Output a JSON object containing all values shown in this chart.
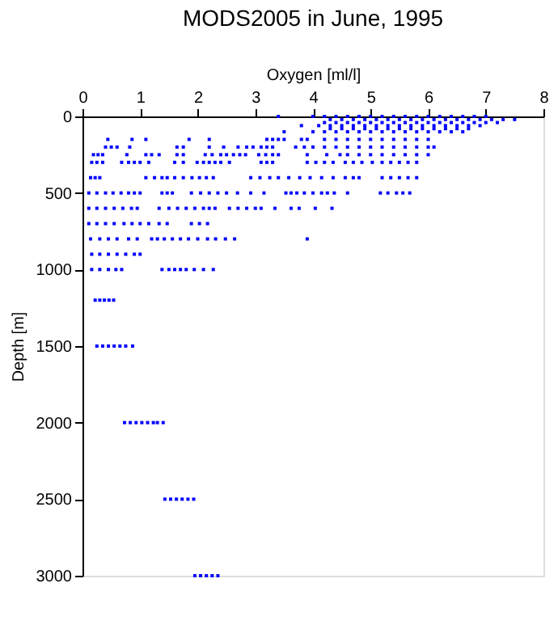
{
  "chart_data": {
    "type": "scatter",
    "title": "MODS2005 in June, 1995",
    "xlabel": "Oxygen [ml/l]",
    "ylabel": "Depth [m]",
    "xlim": [
      0,
      8
    ],
    "xticks": [
      0,
      1,
      2,
      3,
      4,
      5,
      6,
      7,
      8
    ],
    "ylim": [
      3000,
      0
    ],
    "yticks": [
      0,
      500,
      1000,
      1500,
      2000,
      2500,
      3000
    ],
    "grid": false,
    "legend": false,
    "marker": "square",
    "series": [
      {
        "color": "#0000ff",
        "x": [
          3.4,
          4.0,
          4.2,
          4.4,
          4.6,
          4.8,
          5.0,
          5.2,
          5.4,
          5.6,
          5.8,
          6.0,
          6.2,
          6.4,
          6.6,
          6.8,
          7.0
        ],
        "values": [
          0,
          0,
          0,
          0,
          0,
          0,
          0,
          0,
          0,
          0,
          0,
          0,
          0,
          0,
          0,
          0,
          0
        ]
      },
      {
        "color": "#0000ff",
        "x": [
          4.3,
          4.5,
          4.7,
          4.9,
          5.1,
          5.3,
          5.5,
          5.7,
          5.9,
          6.1,
          6.3,
          6.5,
          6.7,
          6.9,
          7.1,
          7.3,
          7.5
        ],
        "values": [
          20,
          20,
          20,
          20,
          20,
          20,
          20,
          20,
          20,
          20,
          20,
          20,
          20,
          20,
          20,
          20,
          20
        ]
      },
      {
        "color": "#0000ff",
        "x": [
          4.2,
          4.4,
          4.6,
          4.8,
          5.0,
          5.2,
          5.4,
          5.6,
          5.8,
          6.0,
          6.2,
          6.4,
          6.6,
          6.8,
          7.0,
          7.2
        ],
        "values": [
          40,
          40,
          40,
          40,
          40,
          40,
          40,
          40,
          40,
          40,
          40,
          40,
          40,
          40,
          40,
          40
        ]
      },
      {
        "color": "#0000ff",
        "x": [
          3.8,
          4.1,
          4.3,
          4.5,
          4.7,
          4.9,
          5.1,
          5.3,
          5.5,
          5.7,
          5.9,
          6.1,
          6.3,
          6.5,
          6.7,
          6.9
        ],
        "values": [
          60,
          60,
          60,
          60,
          60,
          60,
          60,
          60,
          60,
          60,
          60,
          60,
          60,
          60,
          60,
          60
        ]
      },
      {
        "color": "#0000ff",
        "x": [
          4.3,
          4.5,
          4.7,
          4.9,
          5.1,
          5.3,
          5.5,
          5.7,
          5.9,
          6.1,
          6.3,
          6.5,
          6.7
        ],
        "values": [
          80,
          80,
          80,
          80,
          80,
          80,
          80,
          80,
          80,
          80,
          80,
          80,
          80
        ]
      },
      {
        "color": "#0000ff",
        "x": [
          3.5,
          4.0,
          4.2,
          4.4,
          4.6,
          4.8,
          5.0,
          5.2,
          5.4,
          5.6,
          5.8,
          6.0,
          6.2,
          6.4,
          6.6
        ],
        "values": [
          100,
          100,
          100,
          100,
          100,
          100,
          100,
          100,
          100,
          100,
          100,
          100,
          100,
          100,
          100
        ]
      },
      {
        "color": "#0000ff",
        "x": [
          0.44,
          0.86,
          1.1,
          1.85,
          2.2,
          3.2,
          3.3,
          3.4,
          3.5,
          3.8,
          3.9,
          4.2,
          4.4,
          4.6,
          4.8,
          5.0,
          5.2,
          5.4,
          5.6,
          5.8,
          6.0
        ],
        "values": [
          150,
          150,
          150,
          150,
          150,
          150,
          150,
          150,
          150,
          150,
          150,
          150,
          150,
          150,
          150,
          150,
          150,
          150,
          150,
          150,
          150
        ]
      },
      {
        "color": "#0000ff",
        "x": [
          0.4,
          0.5,
          0.6,
          0.82,
          1.64,
          1.75,
          2.2,
          2.45,
          2.7,
          2.85,
          2.96,
          3.1,
          3.2,
          3.3,
          3.7,
          3.85,
          4.0,
          4.2,
          4.4,
          4.6,
          4.8,
          5.0,
          5.2,
          5.4,
          5.6,
          5.8,
          6.0,
          6.1
        ],
        "values": [
          200,
          200,
          200,
          200,
          200,
          200,
          200,
          200,
          200,
          200,
          200,
          200,
          200,
          200,
          200,
          200,
          200,
          200,
          200,
          200,
          200,
          200,
          200,
          200,
          200,
          200,
          200,
          200
        ]
      },
      {
        "color": "#0000ff",
        "x": [
          0.19,
          0.27,
          0.35,
          0.77,
          1.1,
          1.2,
          1.33,
          1.64,
          1.75,
          2.13,
          2.25,
          2.4,
          2.5,
          2.62,
          2.73,
          2.83,
          3.06,
          3.18,
          3.3,
          3.4,
          3.9,
          4.24,
          4.47,
          4.6,
          4.8,
          5.0,
          5.2,
          5.4,
          5.6,
          5.8,
          6.0
        ],
        "values": [
          250,
          250,
          250,
          250,
          250,
          250,
          250,
          250,
          250,
          250,
          250,
          250,
          250,
          250,
          250,
          250,
          250,
          250,
          250,
          250,
          250,
          250,
          250,
          250,
          250,
          250,
          250,
          250,
          250,
          250,
          250
        ]
      },
      {
        "color": "#0000ff",
        "x": [
          0.16,
          0.25,
          0.35,
          0.68,
          0.8,
          0.9,
          1.0,
          1.15,
          1.6,
          1.75,
          1.99,
          2.1,
          2.2,
          2.3,
          2.4,
          2.55,
          3.1,
          3.2,
          3.3,
          3.9,
          4.05,
          4.2,
          4.35,
          4.56,
          4.7,
          4.85,
          5.03,
          5.2,
          5.35,
          5.5,
          5.65,
          5.8
        ],
        "values": [
          300,
          300,
          300,
          300,
          300,
          300,
          300,
          300,
          300,
          300,
          300,
          300,
          300,
          300,
          300,
          300,
          300,
          300,
          300,
          300,
          300,
          300,
          300,
          300,
          300,
          300,
          300,
          300,
          300,
          300,
          300,
          300
        ]
      },
      {
        "color": "#0000ff",
        "x": [
          0.14,
          0.22,
          0.3,
          1.1,
          1.25,
          1.38,
          1.47,
          1.6,
          1.75,
          1.9,
          2.03,
          2.15,
          2.27,
          2.92,
          3.08,
          3.25,
          3.4,
          3.58,
          3.77,
          3.95,
          4.15,
          4.35,
          4.56,
          4.7,
          4.8,
          5.2,
          5.35,
          5.5,
          5.65,
          5.8
        ],
        "values": [
          400,
          400,
          400,
          400,
          400,
          400,
          400,
          400,
          400,
          400,
          400,
          400,
          400,
          400,
          400,
          400,
          400,
          400,
          400,
          400,
          400,
          400,
          400,
          400,
          400,
          400,
          400,
          400,
          400,
          400
        ]
      },
      {
        "color": "#0000ff",
        "x": [
          0.11,
          0.25,
          0.4,
          0.53,
          0.67,
          0.8,
          0.9,
          1.0,
          1.38,
          1.47,
          1.56,
          1.89,
          2.05,
          2.2,
          2.35,
          2.5,
          2.69,
          2.92,
          3.15,
          3.53,
          3.62,
          3.72,
          3.85,
          4.0,
          4.15,
          4.25,
          4.37,
          4.6,
          5.17,
          5.3,
          5.45,
          5.56,
          5.68
        ],
        "values": [
          500,
          500,
          500,
          500,
          500,
          500,
          500,
          500,
          500,
          500,
          500,
          500,
          500,
          500,
          500,
          500,
          500,
          500,
          500,
          500,
          500,
          500,
          500,
          500,
          500,
          500,
          500,
          500,
          500,
          500,
          500,
          500,
          500
        ]
      },
      {
        "color": "#0000ff",
        "x": [
          0.11,
          0.25,
          0.4,
          0.55,
          0.7,
          0.85,
          0.95,
          1.33,
          1.5,
          1.65,
          1.8,
          1.95,
          2.1,
          2.2,
          2.3,
          2.55,
          2.7,
          2.85,
          3.0,
          3.1,
          3.34,
          3.62,
          3.76,
          4.04,
          4.33
        ],
        "values": [
          600,
          600,
          600,
          600,
          600,
          600,
          600,
          600,
          600,
          600,
          600,
          600,
          600,
          600,
          600,
          600,
          600,
          600,
          600,
          600,
          600,
          600,
          600,
          600,
          600
        ]
      },
      {
        "color": "#0000ff",
        "x": [
          0.11,
          0.25,
          0.4,
          0.55,
          0.72,
          0.86,
          1.0,
          1.15,
          1.33,
          1.47,
          1.89,
          2.03,
          2.17
        ],
        "values": [
          700,
          700,
          700,
          700,
          700,
          700,
          700,
          700,
          700,
          700,
          700,
          700,
          700
        ]
      },
      {
        "color": "#0000ff",
        "x": [
          0.14,
          0.3,
          0.45,
          0.6,
          0.8,
          0.95,
          1.2,
          1.3,
          1.42,
          1.56,
          1.7,
          1.84,
          2.0,
          2.17,
          2.31,
          2.48,
          2.64,
          3.9
        ],
        "values": [
          800,
          800,
          800,
          800,
          800,
          800,
          800,
          800,
          800,
          800,
          800,
          800,
          800,
          800,
          800,
          800,
          800,
          800
        ]
      },
      {
        "color": "#0000ff",
        "x": [
          0.16,
          0.3,
          0.45,
          0.6,
          0.75,
          0.9,
          1.0
        ],
        "values": [
          900,
          900,
          900,
          900,
          900,
          900,
          900
        ]
      },
      {
        "color": "#0000ff",
        "x": [
          0.16,
          0.3,
          0.45,
          0.58,
          0.68,
          1.38,
          1.5,
          1.6,
          1.7,
          1.8,
          1.94,
          2.1,
          2.27
        ],
        "values": [
          1000,
          1000,
          1000,
          1000,
          1000,
          1000,
          1000,
          1000,
          1000,
          1000,
          1000,
          1000,
          1000
        ]
      },
      {
        "color": "#0000ff",
        "x": [
          0.22,
          0.3,
          0.38,
          0.46,
          0.54
        ],
        "values": [
          1200,
          1200,
          1200,
          1200,
          1200
        ]
      },
      {
        "color": "#0000ff",
        "x": [
          0.25,
          0.35,
          0.45,
          0.55,
          0.65,
          0.75,
          0.87
        ],
        "values": [
          1500,
          1500,
          1500,
          1500,
          1500,
          1500,
          1500
        ]
      },
      {
        "color": "#0000ff",
        "x": [
          0.73,
          0.83,
          0.93,
          1.03,
          1.13,
          1.23,
          1.3,
          1.4
        ],
        "values": [
          2000,
          2000,
          2000,
          2000,
          2000,
          2000,
          2000,
          2000
        ]
      },
      {
        "color": "#0000ff",
        "x": [
          1.43,
          1.53,
          1.63,
          1.73,
          1.83,
          1.93
        ],
        "values": [
          2500,
          2500,
          2500,
          2500,
          2500,
          2500
        ]
      },
      {
        "color": "#0000ff",
        "x": [
          1.95,
          2.05,
          2.15,
          2.25,
          2.35
        ],
        "values": [
          3000,
          3000,
          3000,
          3000,
          3000
        ]
      }
    ]
  }
}
